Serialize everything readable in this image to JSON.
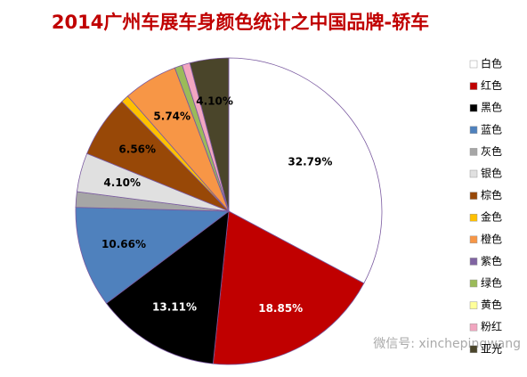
{
  "chart_data": {
    "type": "pie",
    "title": "2014广州车展车身颜色统计之中国品牌-轿车",
    "categories": [
      "白色",
      "红色",
      "黑色",
      "蓝色",
      "灰色",
      "银色",
      "棕色",
      "金色",
      "橙色",
      "紫色",
      "绿色",
      "黄色",
      "粉红",
      "亚光"
    ],
    "values": [
      32.79,
      18.85,
      13.11,
      10.66,
      1.64,
      4.1,
      6.56,
      0.82,
      5.74,
      0,
      0.82,
      0,
      0.82,
      4.1
    ],
    "value_labels": [
      "32.79%",
      "18.85%",
      "13.11%",
      "10.66%",
      null,
      "4.10%",
      "6.56%",
      null,
      "5.74%",
      null,
      null,
      null,
      null,
      "4.10%"
    ],
    "colors": [
      "#ffffff",
      "#c00000",
      "#000000",
      "#4f81bd",
      "#a6a6a6",
      "#e0e0e0",
      "#984807",
      "#ffc000",
      "#f79646",
      "#8064a2",
      "#9bbb59",
      "#ffff99",
      "#f2a6c0",
      "#4a452a"
    ],
    "legend": "right",
    "annotation": "微信号: xinchepingwang"
  }
}
